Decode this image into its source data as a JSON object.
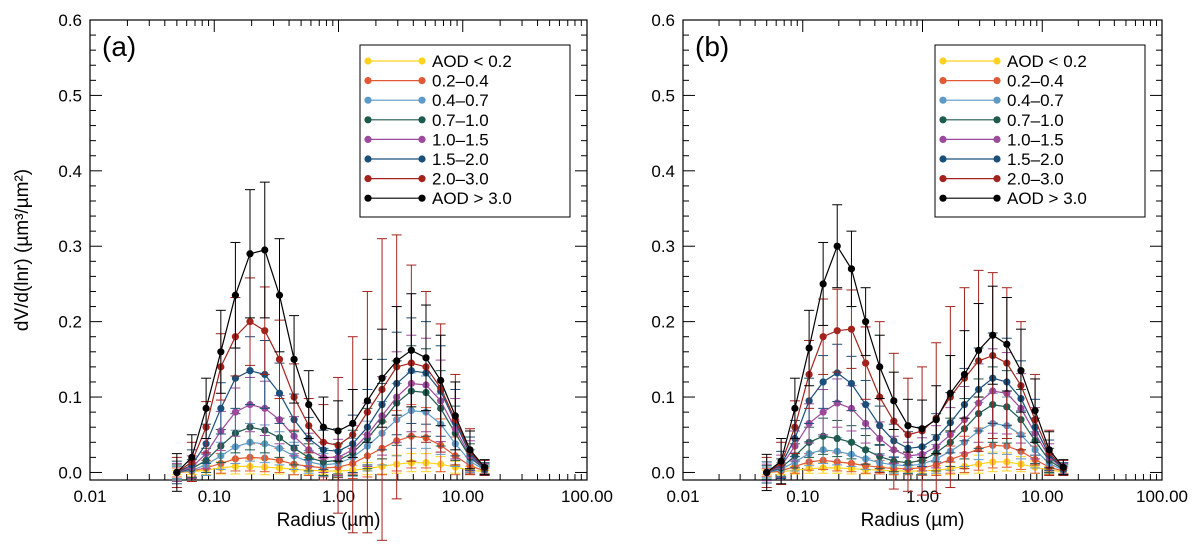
{
  "chart_data": [
    {
      "type": "line",
      "panel_label": "(a)",
      "xlabel": "Radius (µm)",
      "ylabel": "dV/d(lnr) (µm³/µm²)",
      "xscale": "log",
      "xlim": [
        0.01,
        100
      ],
      "ylim": [
        -0.01,
        0.6
      ],
      "x_ticks": [
        "0.01",
        "0.10",
        "1.00",
        "10.00",
        "100.00"
      ],
      "y_ticks": [
        "0.0",
        "0.1",
        "0.2",
        "0.3",
        "0.4",
        "0.5",
        "0.6"
      ],
      "legend_position": "top-right",
      "x": [
        0.05,
        0.066,
        0.086,
        0.113,
        0.148,
        0.194,
        0.255,
        0.335,
        0.439,
        0.576,
        0.756,
        0.992,
        1.302,
        1.708,
        2.241,
        2.94,
        3.857,
        5.061,
        6.641,
        8.713,
        11.432,
        15.0
      ],
      "series": [
        {
          "name": "AOD < 0.2",
          "color": "#ffd21e",
          "values": [
            0.0,
            0.001,
            0.003,
            0.006,
            0.008,
            0.008,
            0.007,
            0.006,
            0.004,
            0.003,
            0.002,
            0.002,
            0.003,
            0.005,
            0.008,
            0.011,
            0.013,
            0.013,
            0.011,
            0.007,
            0.003,
            0.001
          ],
          "errors": [
            0.003,
            0.004,
            0.006,
            0.008,
            0.01,
            0.01,
            0.01,
            0.008,
            0.007,
            0.006,
            0.005,
            0.005,
            0.006,
            0.008,
            0.01,
            0.012,
            0.012,
            0.012,
            0.01,
            0.008,
            0.005,
            0.002
          ]
        },
        {
          "name": "0.2–0.4",
          "color": "#e05a36",
          "values": [
            0.0,
            0.002,
            0.006,
            0.012,
            0.018,
            0.02,
            0.019,
            0.016,
            0.011,
            0.008,
            0.006,
            0.007,
            0.012,
            0.022,
            0.032,
            0.042,
            0.048,
            0.046,
            0.036,
            0.022,
            0.009,
            0.002
          ],
          "errors": [
            0.006,
            0.008,
            0.01,
            0.013,
            0.016,
            0.018,
            0.018,
            0.016,
            0.014,
            0.012,
            0.012,
            0.014,
            0.02,
            0.028,
            0.035,
            0.04,
            0.042,
            0.04,
            0.035,
            0.025,
            0.012,
            0.004
          ]
        },
        {
          "name": "0.4–0.7",
          "color": "#5e9ac6",
          "values": [
            0.0,
            0.003,
            0.01,
            0.022,
            0.034,
            0.04,
            0.038,
            0.032,
            0.022,
            0.014,
            0.01,
            0.012,
            0.02,
            0.035,
            0.052,
            0.07,
            0.082,
            0.08,
            0.064,
            0.038,
            0.015,
            0.003
          ],
          "errors": [
            0.008,
            0.01,
            0.014,
            0.018,
            0.022,
            0.025,
            0.025,
            0.022,
            0.018,
            0.015,
            0.015,
            0.018,
            0.025,
            0.033,
            0.042,
            0.048,
            0.05,
            0.048,
            0.04,
            0.03,
            0.015,
            0.005
          ]
        },
        {
          "name": "0.7–1.0",
          "color": "#1e5a4e",
          "values": [
            0.0,
            0.005,
            0.016,
            0.035,
            0.052,
            0.06,
            0.056,
            0.046,
            0.032,
            0.02,
            0.014,
            0.016,
            0.026,
            0.045,
            0.068,
            0.092,
            0.108,
            0.106,
            0.085,
            0.052,
            0.02,
            0.004
          ],
          "errors": [
            0.01,
            0.012,
            0.016,
            0.022,
            0.026,
            0.03,
            0.03,
            0.026,
            0.022,
            0.018,
            0.018,
            0.022,
            0.03,
            0.04,
            0.05,
            0.056,
            0.06,
            0.058,
            0.05,
            0.036,
            0.018,
            0.006
          ]
        },
        {
          "name": "1.0–1.5",
          "color": "#9c4a9c",
          "values": [
            0.0,
            0.007,
            0.025,
            0.055,
            0.08,
            0.09,
            0.085,
            0.07,
            0.048,
            0.03,
            0.02,
            0.02,
            0.03,
            0.05,
            0.075,
            0.1,
            0.118,
            0.116,
            0.095,
            0.058,
            0.022,
            0.005
          ],
          "errors": [
            0.012,
            0.015,
            0.02,
            0.026,
            0.032,
            0.036,
            0.036,
            0.032,
            0.026,
            0.022,
            0.02,
            0.024,
            0.032,
            0.042,
            0.052,
            0.06,
            0.064,
            0.062,
            0.054,
            0.04,
            0.02,
            0.007
          ]
        },
        {
          "name": "1.5–2.0",
          "color": "#1a4f7a",
          "values": [
            0.0,
            0.01,
            0.038,
            0.085,
            0.125,
            0.135,
            0.13,
            0.105,
            0.07,
            0.045,
            0.03,
            0.028,
            0.038,
            0.06,
            0.09,
            0.118,
            0.135,
            0.132,
            0.108,
            0.066,
            0.025,
            0.005
          ],
          "errors": [
            0.015,
            0.02,
            0.026,
            0.034,
            0.04,
            0.045,
            0.045,
            0.04,
            0.034,
            0.028,
            0.026,
            0.03,
            0.038,
            0.05,
            0.06,
            0.068,
            0.07,
            0.068,
            0.06,
            0.044,
            0.022,
            0.008
          ]
        },
        {
          "name": "2.0–3.0",
          "color": "#a3221c",
          "values": [
            0.0,
            0.014,
            0.06,
            0.14,
            0.18,
            0.2,
            0.188,
            0.15,
            0.1,
            0.062,
            0.04,
            0.036,
            0.05,
            0.08,
            0.11,
            0.14,
            0.145,
            0.14,
            0.112,
            0.07,
            0.028,
            0.006
          ],
          "errors": [
            0.02,
            0.026,
            0.034,
            0.044,
            0.052,
            0.058,
            0.058,
            0.052,
            0.044,
            0.036,
            0.05,
            0.09,
            0.13,
            0.16,
            0.2,
            0.175,
            0.13,
            0.1,
            0.085,
            0.06,
            0.03,
            0.01
          ]
        },
        {
          "name": "AOD > 3.0",
          "color": "#000000",
          "values": [
            0.0,
            0.02,
            0.085,
            0.16,
            0.235,
            0.29,
            0.295,
            0.235,
            0.15,
            0.09,
            0.06,
            0.055,
            0.065,
            0.095,
            0.125,
            0.148,
            0.162,
            0.152,
            0.122,
            0.075,
            0.03,
            0.007
          ],
          "errors": [
            0.025,
            0.03,
            0.04,
            0.055,
            0.07,
            0.085,
            0.09,
            0.075,
            0.058,
            0.045,
            0.04,
            0.04,
            0.045,
            0.055,
            0.065,
            0.072,
            0.075,
            0.07,
            0.06,
            0.045,
            0.025,
            0.01
          ]
        }
      ]
    },
    {
      "type": "line",
      "panel_label": "(b)",
      "xlabel": "Radius (µm)",
      "ylabel": "",
      "xscale": "log",
      "xlim": [
        0.01,
        100
      ],
      "ylim": [
        -0.01,
        0.6
      ],
      "x_ticks": [
        "0.01",
        "0.10",
        "1.00",
        "10.00",
        "100.00"
      ],
      "y_ticks": [
        "0.0",
        "0.1",
        "0.2",
        "0.3",
        "0.4",
        "0.5",
        "0.6"
      ],
      "legend_position": "top-right",
      "x": [
        0.05,
        0.066,
        0.086,
        0.113,
        0.148,
        0.194,
        0.255,
        0.335,
        0.439,
        0.576,
        0.756,
        0.992,
        1.302,
        1.708,
        2.241,
        2.94,
        3.857,
        5.061,
        6.641,
        8.713,
        11.432,
        15.0
      ],
      "series": [
        {
          "name": "AOD < 0.2",
          "color": "#ffd21e",
          "values": [
            0.0,
            0.001,
            0.003,
            0.005,
            0.006,
            0.006,
            0.005,
            0.004,
            0.003,
            0.002,
            0.002,
            0.002,
            0.003,
            0.005,
            0.008,
            0.011,
            0.014,
            0.014,
            0.011,
            0.007,
            0.003,
            0.001
          ],
          "errors": [
            0.003,
            0.004,
            0.005,
            0.006,
            0.007,
            0.007,
            0.007,
            0.006,
            0.005,
            0.005,
            0.005,
            0.005,
            0.006,
            0.008,
            0.01,
            0.012,
            0.013,
            0.012,
            0.01,
            0.008,
            0.005,
            0.002
          ]
        },
        {
          "name": "0.2–0.4",
          "color": "#e05a36",
          "values": [
            0.0,
            0.002,
            0.008,
            0.014,
            0.016,
            0.014,
            0.012,
            0.009,
            0.007,
            0.005,
            0.005,
            0.006,
            0.01,
            0.017,
            0.024,
            0.031,
            0.036,
            0.035,
            0.028,
            0.017,
            0.007,
            0.002
          ],
          "errors": [
            0.005,
            0.007,
            0.009,
            0.011,
            0.012,
            0.012,
            0.011,
            0.01,
            0.009,
            0.008,
            0.008,
            0.01,
            0.014,
            0.018,
            0.024,
            0.028,
            0.03,
            0.028,
            0.024,
            0.018,
            0.01,
            0.004
          ]
        },
        {
          "name": "0.4–0.7",
          "color": "#5e9ac6",
          "values": [
            0.0,
            0.004,
            0.014,
            0.025,
            0.03,
            0.028,
            0.024,
            0.018,
            0.013,
            0.01,
            0.009,
            0.011,
            0.018,
            0.028,
            0.04,
            0.055,
            0.065,
            0.062,
            0.05,
            0.03,
            0.012,
            0.003
          ],
          "errors": [
            0.007,
            0.009,
            0.012,
            0.016,
            0.018,
            0.018,
            0.016,
            0.014,
            0.012,
            0.011,
            0.011,
            0.014,
            0.019,
            0.025,
            0.032,
            0.038,
            0.04,
            0.038,
            0.032,
            0.024,
            0.013,
            0.005
          ]
        },
        {
          "name": "0.7–1.0",
          "color": "#1e5a4e",
          "values": [
            0.0,
            0.006,
            0.022,
            0.04,
            0.048,
            0.045,
            0.04,
            0.03,
            0.021,
            0.015,
            0.013,
            0.016,
            0.026,
            0.04,
            0.058,
            0.078,
            0.09,
            0.087,
            0.07,
            0.042,
            0.016,
            0.004
          ],
          "errors": [
            0.009,
            0.012,
            0.016,
            0.02,
            0.024,
            0.024,
            0.022,
            0.019,
            0.016,
            0.014,
            0.014,
            0.018,
            0.024,
            0.032,
            0.04,
            0.046,
            0.05,
            0.048,
            0.04,
            0.03,
            0.016,
            0.006
          ]
        },
        {
          "name": "1.0–1.5",
          "color": "#9c4a9c",
          "values": [
            0.0,
            0.008,
            0.035,
            0.065,
            0.08,
            0.092,
            0.085,
            0.065,
            0.045,
            0.03,
            0.022,
            0.024,
            0.034,
            0.05,
            0.07,
            0.092,
            0.108,
            0.105,
            0.085,
            0.052,
            0.02,
            0.005
          ],
          "errors": [
            0.011,
            0.015,
            0.02,
            0.026,
            0.03,
            0.032,
            0.03,
            0.026,
            0.022,
            0.018,
            0.018,
            0.022,
            0.028,
            0.036,
            0.044,
            0.052,
            0.056,
            0.054,
            0.046,
            0.034,
            0.018,
            0.007
          ]
        },
        {
          "name": "1.5–2.0",
          "color": "#1a4f7a",
          "values": [
            0.0,
            0.01,
            0.045,
            0.095,
            0.12,
            0.132,
            0.118,
            0.09,
            0.062,
            0.042,
            0.032,
            0.034,
            0.046,
            0.066,
            0.09,
            0.11,
            0.125,
            0.12,
            0.098,
            0.06,
            0.023,
            0.005
          ],
          "errors": [
            0.014,
            0.018,
            0.024,
            0.03,
            0.035,
            0.038,
            0.036,
            0.032,
            0.026,
            0.022,
            0.022,
            0.026,
            0.032,
            0.04,
            0.048,
            0.055,
            0.06,
            0.058,
            0.05,
            0.037,
            0.02,
            0.008
          ]
        },
        {
          "name": "2.0–3.0",
          "color": "#a3221c",
          "values": [
            0.0,
            0.012,
            0.06,
            0.13,
            0.18,
            0.188,
            0.19,
            0.145,
            0.1,
            0.068,
            0.05,
            0.055,
            0.072,
            0.1,
            0.125,
            0.148,
            0.155,
            0.145,
            0.115,
            0.07,
            0.026,
            0.006
          ],
          "errors": [
            0.02,
            0.028,
            0.035,
            0.045,
            0.05,
            0.055,
            0.052,
            0.048,
            0.1,
            0.09,
            0.075,
            0.085,
            0.1,
            0.12,
            0.12,
            0.12,
            0.11,
            0.1,
            0.085,
            0.06,
            0.03,
            0.01
          ]
        },
        {
          "name": "AOD > 3.0",
          "color": "#000000",
          "values": [
            0.0,
            0.015,
            0.085,
            0.165,
            0.25,
            0.3,
            0.27,
            0.2,
            0.14,
            0.095,
            0.062,
            0.058,
            0.07,
            0.105,
            0.13,
            0.162,
            0.182,
            0.17,
            0.135,
            0.082,
            0.03,
            0.007
          ],
          "errors": [
            0.024,
            0.03,
            0.04,
            0.05,
            0.055,
            0.055,
            0.05,
            0.045,
            0.042,
            0.038,
            0.035,
            0.038,
            0.045,
            0.05,
            0.058,
            0.062,
            0.065,
            0.062,
            0.055,
            0.042,
            0.024,
            0.01
          ]
        }
      ]
    }
  ]
}
